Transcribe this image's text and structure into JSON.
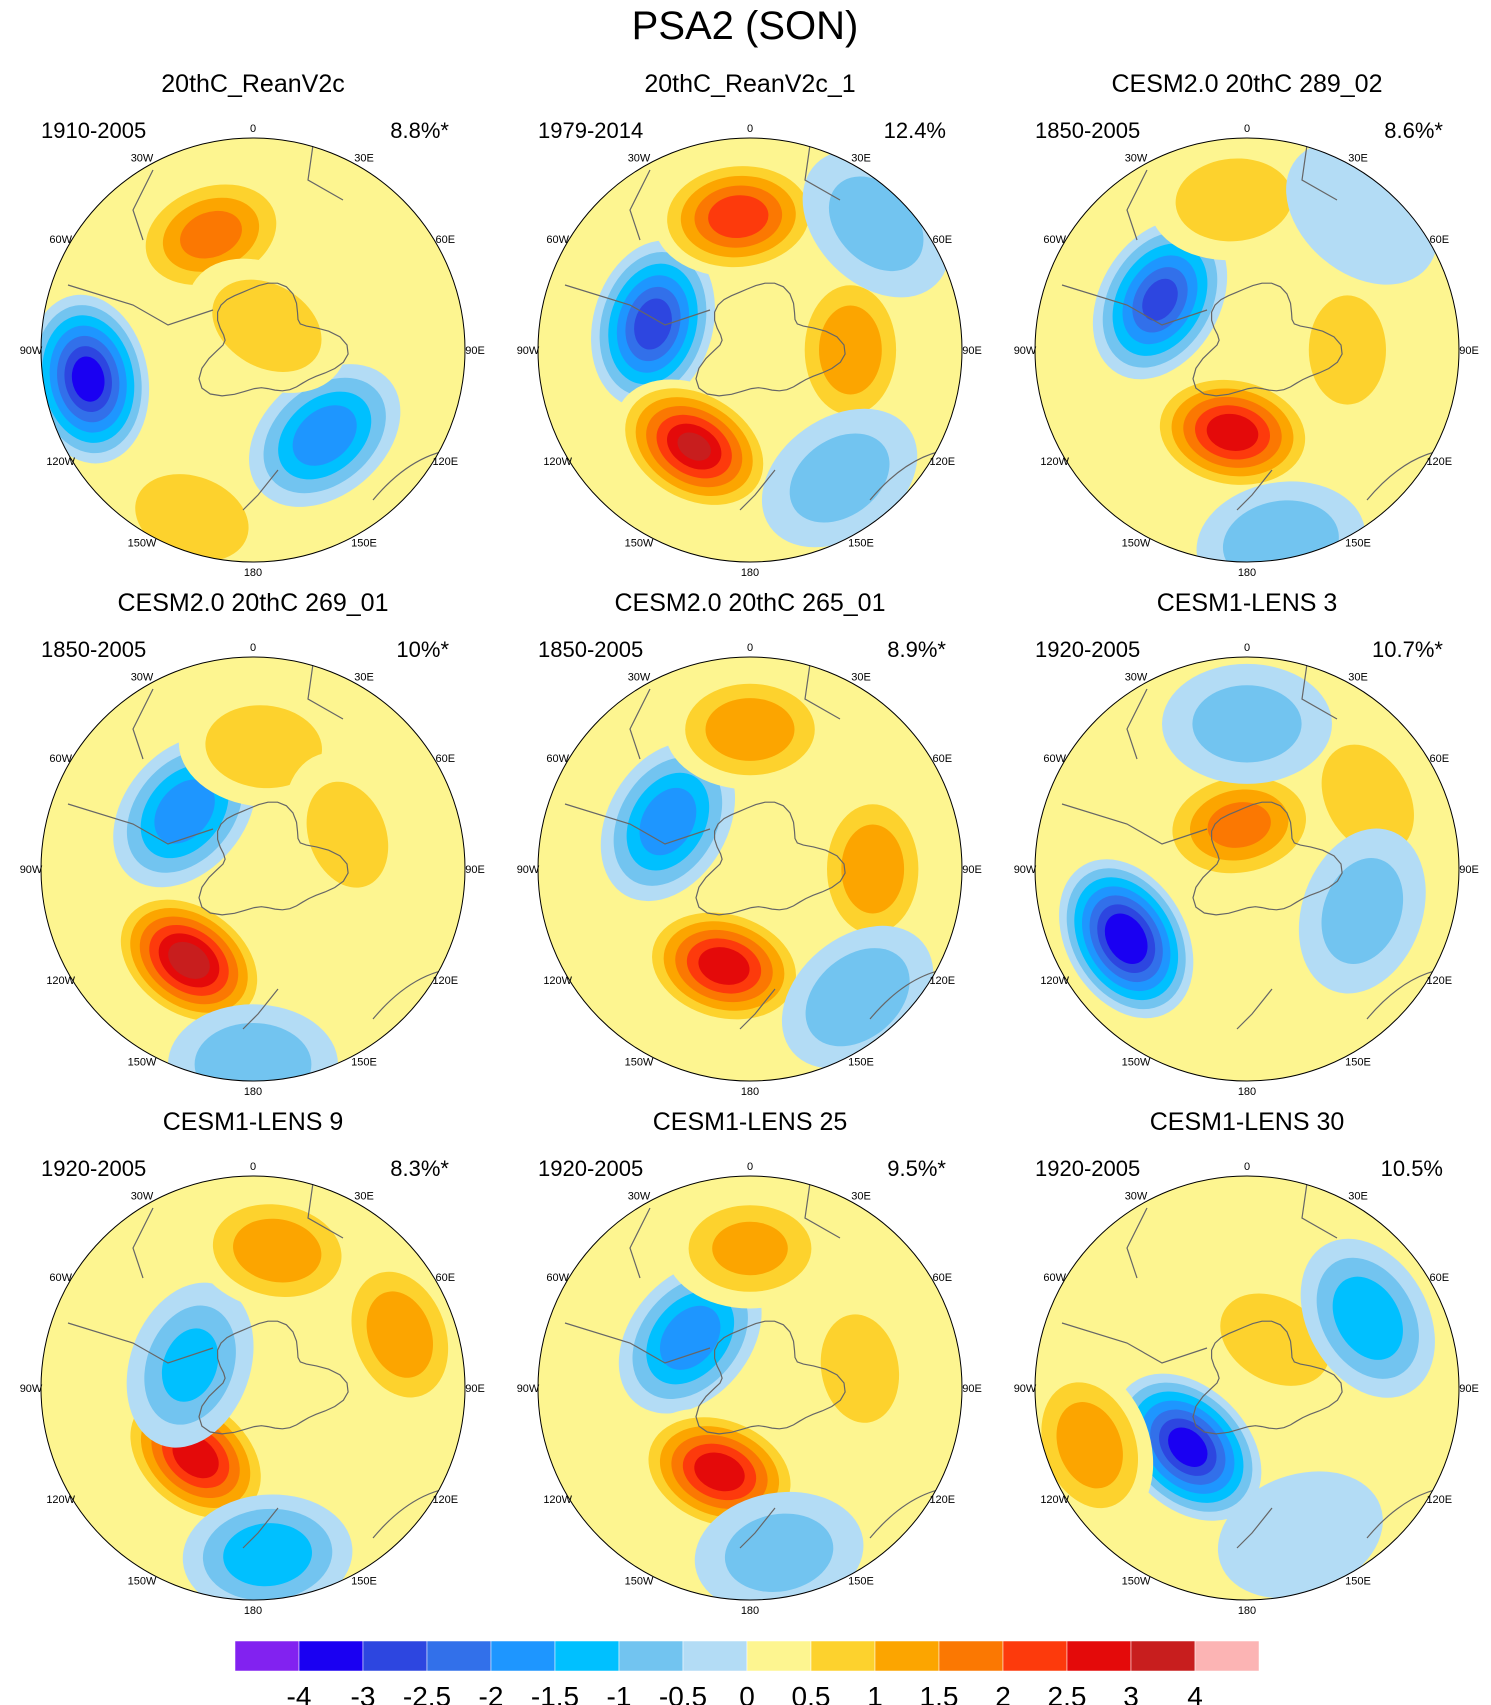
{
  "chart_data": {
    "type": "heatmap",
    "subtype": "south-polar-stereographic-map-panels",
    "title": "PSA2 (SON)",
    "panels": [
      {
        "title": "20thC_ReanV2c",
        "period": "1910-2005",
        "variance": "8.8%*",
        "anomalies": [
          {
            "lon": -100,
            "colat": 30,
            "value": -3.5
          },
          {
            "lon": -20,
            "colat": 22,
            "value": 1.8
          },
          {
            "lon": 140,
            "colat": 20,
            "value": -2.0
          },
          {
            "lon": 30,
            "colat": 5,
            "value": 1.0
          },
          {
            "lon": -160,
            "colat": 32,
            "value": 1.0
          },
          {
            "lon": 70,
            "colat": 30,
            "value": 0.5
          }
        ]
      },
      {
        "title": "20thC_ReanV2c_1",
        "period": "1979-2014",
        "variance": "12.4%",
        "anomalies": [
          {
            "lon": -75,
            "colat": 18,
            "value": -3.0
          },
          {
            "lon": -5,
            "colat": 24,
            "value": 2.5
          },
          {
            "lon": -150,
            "colat": 20,
            "value": 3.2
          },
          {
            "lon": 90,
            "colat": 18,
            "value": 1.5
          },
          {
            "lon": 45,
            "colat": 32,
            "value": -0.8
          },
          {
            "lon": 145,
            "colat": 28,
            "value": -0.8
          }
        ]
      },
      {
        "title": "CESM2.0 20thC 289_02",
        "period": "1850-2005",
        "variance": "8.6%*",
        "anomalies": [
          {
            "lon": -60,
            "colat": 18,
            "value": -2.8
          },
          {
            "lon": -170,
            "colat": 15,
            "value": 3.0
          },
          {
            "lon": -5,
            "colat": 27,
            "value": 1.0
          },
          {
            "lon": 90,
            "colat": 18,
            "value": 0.8
          },
          {
            "lon": 170,
            "colat": 35,
            "value": -1.0
          },
          {
            "lon": 40,
            "colat": 32,
            "value": -0.5
          }
        ]
      },
      {
        "title": "CESM2.0 20thC 269_01",
        "period": "1850-2005",
        "variance": "10%*",
        "anomalies": [
          {
            "lon": -50,
            "colat": 16,
            "value": -2.0
          },
          {
            "lon": -145,
            "colat": 20,
            "value": 3.5
          },
          {
            "lon": 5,
            "colat": 22,
            "value": 1.0
          },
          {
            "lon": 70,
            "colat": 18,
            "value": 0.8
          },
          {
            "lon": 180,
            "colat": 35,
            "value": -1.0
          }
        ]
      },
      {
        "title": "CESM2.0 20thC 265_01",
        "period": "1850-2005",
        "variance": "8.9%*",
        "anomalies": [
          {
            "lon": -60,
            "colat": 17,
            "value": -2.0
          },
          {
            "lon": -165,
            "colat": 18,
            "value": 3.0
          },
          {
            "lon": 0,
            "colat": 25,
            "value": 1.5
          },
          {
            "lon": 90,
            "colat": 22,
            "value": 1.5
          },
          {
            "lon": 140,
            "colat": 30,
            "value": -1.0
          }
        ]
      },
      {
        "title": "CESM1-LENS 3",
        "period": "1920-2005",
        "variance": "10.7%*",
        "anomalies": [
          {
            "lon": -120,
            "colat": 25,
            "value": -3.8
          },
          {
            "lon": -10,
            "colat": 8,
            "value": 1.8
          },
          {
            "lon": 60,
            "colat": 25,
            "value": 1.0
          },
          {
            "lon": 0,
            "colat": 26,
            "value": -0.8
          },
          {
            "lon": 110,
            "colat": 22,
            "value": -0.8
          }
        ]
      },
      {
        "title": "CESM1-LENS 9",
        "period": "1920-2005",
        "variance": "8.3%*",
        "anomalies": [
          {
            "lon": -140,
            "colat": 16,
            "value": 3.0
          },
          {
            "lon": -70,
            "colat": 12,
            "value": -1.2
          },
          {
            "lon": 10,
            "colat": 25,
            "value": 1.5
          },
          {
            "lon": 70,
            "colat": 28,
            "value": 1.5
          },
          {
            "lon": 175,
            "colat": 30,
            "value": -1.5
          }
        ]
      },
      {
        "title": "CESM1-LENS 25",
        "period": "1920-2005",
        "variance": "9.5%*",
        "anomalies": [
          {
            "lon": -50,
            "colat": 14,
            "value": -2.0
          },
          {
            "lon": -160,
            "colat": 16,
            "value": 3.0
          },
          {
            "lon": 0,
            "colat": 25,
            "value": 1.2
          },
          {
            "lon": 80,
            "colat": 20,
            "value": 0.8
          },
          {
            "lon": 170,
            "colat": 30,
            "value": -0.8
          }
        ]
      },
      {
        "title": "CESM1-LENS 30",
        "period": "1920-2005",
        "variance": "10.5%",
        "anomalies": [
          {
            "lon": -135,
            "colat": 15,
            "value": -3.5
          },
          {
            "lon": -110,
            "colat": 30,
            "value": 1.5
          },
          {
            "lon": 30,
            "colat": 10,
            "value": 1.0
          },
          {
            "lon": 60,
            "colat": 25,
            "value": -1.5
          },
          {
            "lon": 160,
            "colat": 28,
            "value": -0.5
          }
        ]
      }
    ],
    "longitude_labels": [
      "0",
      "30E",
      "60E",
      "90E",
      "120E",
      "150E",
      "180",
      "150W",
      "120W",
      "90W",
      "60W",
      "30W"
    ],
    "colorbar": {
      "ticks": [
        "-4",
        "-3",
        "-2.5",
        "-2",
        "-1.5",
        "-1",
        "-0.5",
        "0",
        "0.5",
        "1",
        "1.5",
        "2",
        "2.5",
        "3",
        "4"
      ],
      "levels": [
        -4,
        -3,
        -2.5,
        -2,
        -1.5,
        -1,
        -0.5,
        0,
        0.5,
        1,
        1.5,
        2,
        2.5,
        3,
        4
      ],
      "colors": [
        "#8222f0",
        "#1a00f2",
        "#2d46e0",
        "#3270ea",
        "#1e96ff",
        "#00c0ff",
        "#72c4f0",
        "#b3dcf5",
        "#fdf590",
        "#fdd22d",
        "#fca500",
        "#fb7802",
        "#fd3a0c",
        "#e40a0a",
        "#c81e1e",
        "#fcb4b4"
      ]
    }
  }
}
